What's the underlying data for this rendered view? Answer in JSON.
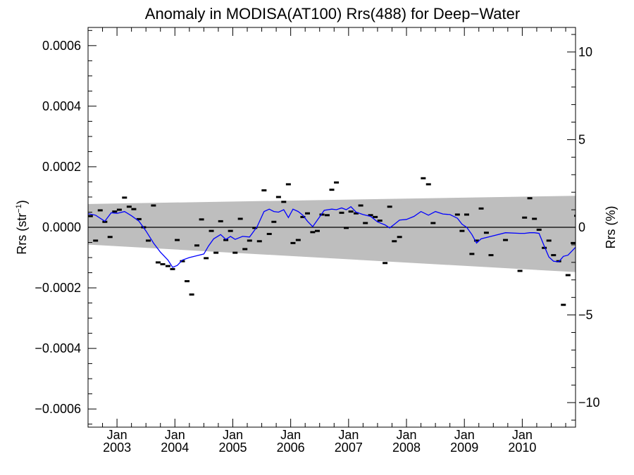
{
  "chart_data": {
    "type": "scatter",
    "title": "Anomaly in MODISA(AT100) Rrs(488) for Deep−Water",
    "ylabel_left": "Rrs (str",
    "ylabel_left_sup": "−1",
    "ylabel_left_close": ")",
    "ylabel_right": "Rrs (%)",
    "x_unit": "year",
    "xlim": [
      2002.5,
      2010.92
    ],
    "ylim": [
      -0.00066,
      0.00066
    ],
    "ylim_right": [
      -11.4,
      11.4
    ],
    "yticks_left": [
      {
        "value": 0.0006,
        "label": "0.0006"
      },
      {
        "value": 0.0004,
        "label": "0.0004"
      },
      {
        "value": 0.0002,
        "label": "0.0002"
      },
      {
        "value": 0.0,
        "label": "0.0000"
      },
      {
        "value": -0.0002,
        "label": "−0.0002"
      },
      {
        "value": -0.0004,
        "label": "−0.0004"
      },
      {
        "value": -0.0006,
        "label": "−0.0006"
      }
    ],
    "yticks_right": [
      {
        "value": 10,
        "label": "10"
      },
      {
        "value": 5,
        "label": "5"
      },
      {
        "value": 0,
        "label": "0"
      },
      {
        "value": -5,
        "label": "−5"
      },
      {
        "value": -10,
        "label": "−10"
      }
    ],
    "xticks": [
      {
        "value": 2003.0,
        "month": "Jan",
        "year": "2003"
      },
      {
        "value": 2004.0,
        "month": "Jan",
        "year": "2004"
      },
      {
        "value": 2005.0,
        "month": "Jan",
        "year": "2005"
      },
      {
        "value": 2006.0,
        "month": "Jan",
        "year": "2006"
      },
      {
        "value": 2007.0,
        "month": "Jan",
        "year": "2007"
      },
      {
        "value": 2008.0,
        "month": "Jan",
        "year": "2008"
      },
      {
        "value": 2009.0,
        "month": "Jan",
        "year": "2009"
      },
      {
        "value": 2010.0,
        "month": "Jan",
        "year": "2010"
      }
    ],
    "uncertainty_band": {
      "x": [
        2002.5,
        2010.92
      ],
      "upper": [
        7.7e-05,
        0.000104
      ],
      "lower": [
        -5.7e-05,
        -0.000148
      ],
      "color": "#bebebe"
    },
    "zero_line": 0,
    "series": [
      {
        "kind": "points",
        "color": "#000000",
        "points": [
          [
            2002.54,
            3.7e-05
          ],
          [
            2002.63,
            -4.4e-05
          ],
          [
            2002.71,
            5.6e-05
          ],
          [
            2002.79,
            1.8e-05
          ],
          [
            2002.88,
            -3.2e-05
          ],
          [
            2002.96,
            5.2e-05
          ],
          [
            2003.04,
            5.8e-05
          ],
          [
            2003.13,
            9.8e-05
          ],
          [
            2003.21,
            6.8e-05
          ],
          [
            2003.29,
            6e-05
          ],
          [
            2003.38,
            2.7e-05
          ],
          [
            2003.46,
            0.0
          ],
          [
            2003.54,
            -4.4e-05
          ],
          [
            2003.63,
            7.2e-05
          ],
          [
            2003.71,
            -0.000116
          ],
          [
            2003.79,
            -0.000122
          ],
          [
            2003.88,
            -0.000128
          ],
          [
            2003.96,
            -0.000138
          ],
          [
            2004.04,
            -4.2e-05
          ],
          [
            2004.13,
            -0.000112
          ],
          [
            2004.21,
            -0.000178
          ],
          [
            2004.29,
            -0.000222
          ],
          [
            2004.38,
            -6e-05
          ],
          [
            2004.46,
            2.6e-05
          ],
          [
            2004.54,
            -0.000102
          ],
          [
            2004.63,
            -1.2e-05
          ],
          [
            2004.71,
            -8.4e-05
          ],
          [
            2004.79,
            2e-05
          ],
          [
            2004.88,
            -4.2e-05
          ],
          [
            2004.96,
            -1.2e-05
          ],
          [
            2005.04,
            -8.4e-05
          ],
          [
            2005.13,
            2.8e-05
          ],
          [
            2005.21,
            -7.2e-05
          ],
          [
            2005.29,
            -4.4e-05
          ],
          [
            2005.38,
            -2e-06
          ],
          [
            2005.46,
            -4.6e-05
          ],
          [
            2005.54,
            0.000122
          ],
          [
            2005.63,
            -2.2e-05
          ],
          [
            2005.71,
            1.8e-05
          ],
          [
            2005.79,
            0.0001
          ],
          [
            2005.88,
            8.4e-05
          ],
          [
            2005.96,
            0.000142
          ],
          [
            2006.04,
            -5.2e-05
          ],
          [
            2006.13,
            -4.2e-05
          ],
          [
            2006.21,
            3.4e-05
          ],
          [
            2006.29,
            4.6e-05
          ],
          [
            2006.38,
            -1.6e-05
          ],
          [
            2006.46,
            -1.2e-05
          ],
          [
            2006.54,
            4.2e-05
          ],
          [
            2006.63,
            4e-05
          ],
          [
            2006.71,
            0.000124
          ],
          [
            2006.79,
            0.000148
          ],
          [
            2006.88,
            4.8e-05
          ],
          [
            2006.96,
            -2e-06
          ],
          [
            2007.04,
            5.2e-05
          ],
          [
            2007.13,
            4.6e-05
          ],
          [
            2007.21,
            7.2e-05
          ],
          [
            2007.29,
            1.4e-05
          ],
          [
            2007.38,
            4e-05
          ],
          [
            2007.46,
            3.4e-05
          ],
          [
            2007.54,
            2.2e-05
          ],
          [
            2007.63,
            -0.000118
          ],
          [
            2007.71,
            6.8e-05
          ],
          [
            2007.79,
            -4.6e-05
          ],
          [
            2007.88,
            -3.2e-05
          ],
          [
            2008.29,
            0.000162
          ],
          [
            2008.38,
            0.000142
          ],
          [
            2008.46,
            1.4e-05
          ],
          [
            2008.88,
            4.2e-05
          ],
          [
            2008.96,
            -1.2e-05
          ],
          [
            2009.04,
            4.2e-05
          ],
          [
            2009.13,
            -8.8e-05
          ],
          [
            2009.21,
            -4.4e-05
          ],
          [
            2009.29,
            6.2e-05
          ],
          [
            2009.38,
            -1.8e-05
          ],
          [
            2009.46,
            -9.2e-05
          ],
          [
            2009.71,
            -4.2e-05
          ],
          [
            2009.96,
            -0.000144
          ],
          [
            2010.04,
            3.2e-05
          ],
          [
            2010.13,
            9.6e-05
          ],
          [
            2010.21,
            2.8e-05
          ],
          [
            2010.29,
            -8e-06
          ],
          [
            2010.38,
            -6.8e-05
          ],
          [
            2010.46,
            -4.4e-05
          ],
          [
            2010.54,
            -9.2e-05
          ],
          [
            2010.63,
            -0.000112
          ],
          [
            2010.71,
            -0.000256
          ],
          [
            2010.79,
            -0.000158
          ],
          [
            2010.88,
            -5.2e-05
          ],
          [
            2010.94,
            3.8e-05
          ]
        ]
      },
      {
        "kind": "line",
        "color": "#0000ff",
        "x": [
          2002.5,
          2002.63,
          2002.79,
          2002.9,
          2003.0,
          2003.13,
          2003.25,
          2003.38,
          2003.5,
          2003.63,
          2003.75,
          2003.88,
          2003.96,
          2004.04,
          2004.13,
          2004.25,
          2004.38,
          2004.5,
          2004.58,
          2004.67,
          2004.79,
          2004.88,
          2004.96,
          2005.04,
          2005.17,
          2005.29,
          2005.42,
          2005.54,
          2005.63,
          2005.71,
          2005.79,
          2005.88,
          2005.96,
          2006.04,
          2006.13,
          2006.21,
          2006.29,
          2006.38,
          2006.46,
          2006.58,
          2006.71,
          2006.79,
          2006.88,
          2006.96,
          2007.04,
          2007.13,
          2007.25,
          2007.38,
          2007.5,
          2007.63,
          2007.71,
          2007.79,
          2007.88,
          2008.0,
          2008.13,
          2008.25,
          2008.38,
          2008.5,
          2008.63,
          2008.75,
          2008.88,
          2008.96,
          2009.04,
          2009.13,
          2009.21,
          2009.29,
          2009.46,
          2009.71,
          2009.96,
          2010.04,
          2010.13,
          2010.21,
          2010.29,
          2010.38,
          2010.46,
          2010.54,
          2010.63,
          2010.71,
          2010.79,
          2010.92
        ],
        "y": [
          4.5e-05,
          4e-05,
          2e-05,
          4.8e-05,
          4.6e-05,
          5.2e-05,
          3.8e-05,
          2e-05,
          -1.2e-05,
          -5.2e-05,
          -8.2e-05,
          -0.000108,
          -0.000132,
          -0.000126,
          -0.000108,
          -0.0001,
          -9.4e-05,
          -8.8e-05,
          -6.2e-05,
          -3.8e-05,
          -2.4e-05,
          -4e-05,
          -3e-05,
          -4e-05,
          -3e-05,
          -3.2e-05,
          2e-06,
          5.2e-05,
          6e-05,
          5.2e-05,
          5e-05,
          5.8e-05,
          3.2e-05,
          6e-05,
          5.2e-05,
          4e-05,
          2e-05,
          2e-06,
          2.4e-05,
          5.6e-05,
          6e-05,
          5.8e-05,
          6.4e-05,
          5.8e-05,
          6.8e-05,
          5e-05,
          4.2e-05,
          3.6e-05,
          1.8e-05,
          8e-06,
          -2e-06,
          1e-05,
          2.4e-05,
          2.6e-05,
          3.6e-05,
          5.2e-05,
          4e-05,
          5.2e-05,
          4.4e-05,
          4.2e-05,
          3e-05,
          1e-05,
          0.0,
          -2.4e-05,
          -5.2e-05,
          -3.8e-05,
          -3e-05,
          -1.8e-05,
          -2e-05,
          -2e-05,
          -1.8e-05,
          -1.8e-05,
          -2e-05,
          -6.2e-05,
          -9.8e-05,
          -0.000112,
          -0.000114,
          -9.6e-05,
          -9.2e-05,
          -6.6e-05
        ]
      }
    ]
  }
}
